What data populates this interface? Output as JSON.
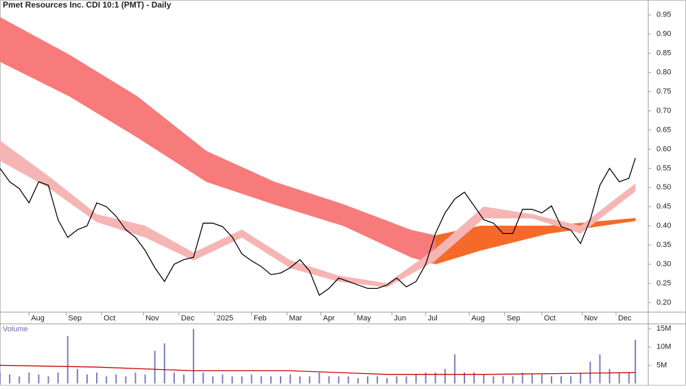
{
  "chart_data": [
    {
      "type": "line",
      "title": "Pmet Resources Inc. CDI 10:1 (PMT) - Daily",
      "x": [
        0,
        6,
        12,
        18,
        24,
        30,
        36,
        42,
        48,
        54,
        60,
        66,
        72,
        78,
        84,
        90,
        96,
        102,
        108,
        114,
        120,
        126,
        132,
        138,
        144,
        150,
        156,
        162,
        168,
        174,
        180,
        186,
        192,
        198,
        204,
        210,
        216,
        222,
        228,
        234,
        240,
        246,
        252,
        258,
        264,
        270,
        276,
        282,
        288,
        294,
        300,
        306,
        312,
        318,
        324,
        330,
        336,
        342,
        348,
        354,
        360,
        366,
        372,
        378,
        384,
        390,
        394
      ],
      "series": [
        {
          "color": "#000000",
          "values": [
            0.55,
            0.515,
            0.497,
            0.46,
            0.515,
            0.506,
            0.416,
            0.37,
            0.39,
            0.4,
            0.46,
            0.45,
            0.425,
            0.39,
            0.37,
            0.336,
            0.291,
            0.255,
            0.3,
            0.312,
            0.318,
            0.407,
            0.407,
            0.398,
            0.371,
            0.327,
            0.309,
            0.294,
            0.273,
            0.277,
            0.291,
            0.312,
            0.282,
            0.219,
            0.237,
            0.264,
            0.255,
            0.246,
            0.237,
            0.237,
            0.246,
            0.264,
            0.241,
            0.255,
            0.3,
            0.38,
            0.434,
            0.47,
            0.488,
            0.452,
            0.416,
            0.407,
            0.38,
            0.38,
            0.443,
            0.443,
            0.434,
            0.452,
            0.398,
            0.389,
            0.354,
            0.416,
            0.506,
            0.55,
            0.515,
            0.524,
            0.577
          ]
        }
      ],
      "bands": [
        {
          "color": "#f77b7b",
          "x": [
            0,
            43,
            85,
            128,
            170,
            213,
            255,
            270
          ],
          "upper": [
            0.944,
            0.846,
            0.738,
            0.595,
            0.515,
            0.456,
            0.389,
            0.375
          ],
          "lower": [
            0.828,
            0.738,
            0.631,
            0.515,
            0.456,
            0.4,
            0.318,
            0.3
          ]
        },
        {
          "color": "#f56a28",
          "x": [
            270,
            298,
            340,
            394
          ],
          "upper": [
            0.375,
            0.4,
            0.4,
            0.42
          ],
          "lower": [
            0.3,
            0.336,
            0.38,
            0.413
          ]
        },
        {
          "color": "#f6b5b5",
          "x": [
            0,
            30,
            60,
            90,
            120,
            150,
            180,
            210,
            240,
            270,
            300,
            330,
            360,
            394
          ],
          "upper": [
            0.622,
            0.53,
            0.43,
            0.4,
            0.33,
            0.39,
            0.31,
            0.27,
            0.25,
            0.34,
            0.45,
            0.43,
            0.4,
            0.51
          ],
          "lower": [
            0.57,
            0.5,
            0.41,
            0.37,
            0.31,
            0.37,
            0.29,
            0.255,
            0.24,
            0.31,
            0.42,
            0.42,
            0.38,
            0.49
          ]
        }
      ],
      "xlim": [
        0,
        402
      ],
      "ylim": [
        0.175,
        0.989
      ],
      "xticks": [
        {
          "value": 18,
          "label": "Aug"
        },
        {
          "value": 41,
          "label": "Sep"
        },
        {
          "value": 63,
          "label": "Oct"
        },
        {
          "value": 89,
          "label": "Nov"
        },
        {
          "value": 111,
          "label": "Dec"
        },
        {
          "value": 133,
          "label": "2025"
        },
        {
          "value": 156,
          "label": "Feb"
        },
        {
          "value": 178,
          "label": "Mar"
        },
        {
          "value": 199,
          "label": "Apr"
        },
        {
          "value": 220,
          "label": "May"
        },
        {
          "value": 243,
          "label": "Jun"
        },
        {
          "value": 264,
          "label": "Jul"
        },
        {
          "value": 291,
          "label": "Aug"
        },
        {
          "value": 313,
          "label": "Sep"
        },
        {
          "value": 336,
          "label": "Oct"
        },
        {
          "value": 361,
          "label": "Nov"
        },
        {
          "value": 382,
          "label": "Dec"
        }
      ],
      "yticks": [
        {
          "value": 0.2,
          "label": "0.20"
        },
        {
          "value": 0.25,
          "label": "0.25"
        },
        {
          "value": 0.3,
          "label": "0.30"
        },
        {
          "value": 0.35,
          "label": "0.35"
        },
        {
          "value": 0.4,
          "label": "0.40"
        },
        {
          "value": 0.45,
          "label": "0.45"
        },
        {
          "value": 0.5,
          "label": "0.50"
        },
        {
          "value": 0.55,
          "label": "0.55"
        },
        {
          "value": 0.6,
          "label": "0.60"
        },
        {
          "value": 0.65,
          "label": "0.65"
        },
        {
          "value": 0.7,
          "label": "0.70"
        },
        {
          "value": 0.75,
          "label": "0.75"
        },
        {
          "value": 0.8,
          "label": "0.80"
        },
        {
          "value": 0.85,
          "label": "0.85"
        },
        {
          "value": 0.9,
          "label": "0.90"
        },
        {
          "value": 0.95,
          "label": "0.95"
        }
      ]
    },
    {
      "type": "bar",
      "title": "Volume",
      "color": "#7b7bc0",
      "x": [
        0,
        6,
        12,
        18,
        24,
        30,
        36,
        42,
        48,
        54,
        60,
        66,
        72,
        78,
        84,
        90,
        96,
        102,
        108,
        114,
        120,
        126,
        132,
        138,
        144,
        150,
        156,
        162,
        168,
        174,
        180,
        186,
        192,
        198,
        204,
        210,
        216,
        222,
        228,
        234,
        240,
        246,
        252,
        258,
        264,
        270,
        276,
        282,
        288,
        294,
        300,
        306,
        312,
        318,
        324,
        330,
        336,
        342,
        348,
        354,
        360,
        366,
        372,
        378,
        384,
        390,
        394
      ],
      "values": [
        3,
        2.5,
        2,
        3,
        2.5,
        2,
        3,
        13,
        4,
        2.5,
        3,
        2,
        2.5,
        2,
        3,
        2.5,
        9,
        11,
        3,
        2.5,
        15,
        3,
        2,
        2.5,
        2,
        2,
        2.5,
        2,
        2,
        2,
        2.5,
        2,
        2,
        3,
        2,
        2,
        2,
        1.5,
        2,
        2,
        1.5,
        2,
        2,
        2.5,
        3,
        3,
        4,
        8,
        3,
        3,
        2.5,
        2,
        2,
        2,
        3,
        2.5,
        2.5,
        2,
        2,
        2,
        3,
        6,
        8,
        4,
        3,
        3,
        12
      ],
      "average": {
        "color": "#cc0000",
        "x": [
          0,
          60,
          120,
          180,
          240,
          300,
          360,
          394
        ],
        "values": [
          5,
          4.5,
          3.5,
          3.5,
          2.5,
          2.5,
          2.8,
          3
        ]
      },
      "xlim": [
        0,
        402
      ],
      "ylim": [
        0,
        15.8
      ],
      "yticks": [
        {
          "value": 5,
          "label": "5M"
        },
        {
          "value": 10,
          "label": "10M"
        },
        {
          "value": 15,
          "label": "15M"
        }
      ]
    }
  ]
}
